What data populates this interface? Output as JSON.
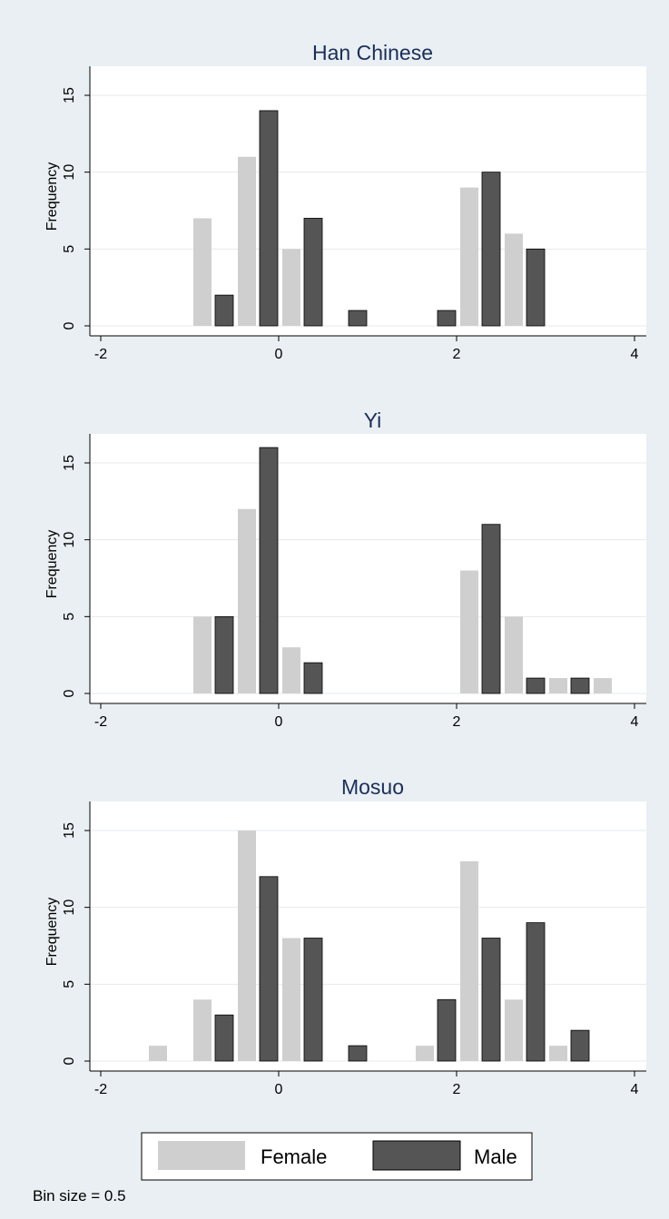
{
  "chart_data": [
    {
      "type": "bar",
      "title": "Han Chinese",
      "ylabel": "Frequency",
      "xlabel": "",
      "xlim": [
        -2,
        4
      ],
      "ylim": [
        0,
        16
      ],
      "xticks": [
        -2,
        0,
        2,
        4
      ],
      "yticks": [
        0,
        5,
        10,
        15
      ],
      "series": [
        {
          "name": "Female",
          "color": "#cfcfcf",
          "x": [
            -0.75,
            -0.25,
            0.25,
            2.25,
            2.75
          ],
          "values": [
            7,
            11,
            5,
            9,
            6
          ]
        },
        {
          "name": "Male",
          "color": "#555555",
          "x": [
            -0.75,
            -0.25,
            0.25,
            0.75,
            1.75,
            2.25,
            2.75
          ],
          "values": [
            2,
            14,
            7,
            1,
            1,
            10,
            5
          ]
        }
      ]
    },
    {
      "type": "bar",
      "title": "Yi",
      "ylabel": "Frequency",
      "xlabel": "",
      "xlim": [
        -2,
        4
      ],
      "ylim": [
        0,
        16
      ],
      "xticks": [
        -2,
        0,
        2,
        4
      ],
      "yticks": [
        0,
        5,
        10,
        15
      ],
      "series": [
        {
          "name": "Female",
          "color": "#cfcfcf",
          "x": [
            -0.75,
            -0.25,
            0.25,
            2.25,
            2.75,
            3.25,
            3.75
          ],
          "values": [
            5,
            12,
            3,
            8,
            5,
            1,
            1
          ]
        },
        {
          "name": "Male",
          "color": "#555555",
          "x": [
            -0.75,
            -0.25,
            0.25,
            2.25,
            2.75,
            3.25
          ],
          "values": [
            5,
            16,
            2,
            11,
            1,
            1
          ]
        }
      ]
    },
    {
      "type": "bar",
      "title": "Mosuo",
      "ylabel": "Frequency",
      "xlabel": "",
      "xlim": [
        -2,
        4
      ],
      "ylim": [
        0,
        16
      ],
      "xticks": [
        -2,
        0,
        2,
        4
      ],
      "yticks": [
        0,
        5,
        10,
        15
      ],
      "series": [
        {
          "name": "Female",
          "color": "#cfcfcf",
          "x": [
            -1.25,
            -0.75,
            -0.25,
            0.25,
            1.75,
            2.25,
            2.75,
            3.25
          ],
          "values": [
            1,
            4,
            15,
            8,
            1,
            13,
            4,
            1
          ]
        },
        {
          "name": "Male",
          "color": "#555555",
          "x": [
            -0.75,
            -0.25,
            0.25,
            0.75,
            1.75,
            2.25,
            2.75,
            3.25
          ],
          "values": [
            3,
            12,
            8,
            1,
            4,
            8,
            9,
            2
          ]
        }
      ]
    }
  ],
  "legend": {
    "items": [
      {
        "label": "Female",
        "color": "#cfcfcf"
      },
      {
        "label": "Male",
        "color": "#555555"
      }
    ]
  },
  "note": "Bin size = 0.5",
  "colors": {
    "background": "#e9eff2",
    "plot_bg": "#ffffff",
    "title": "#1a2e5c",
    "grid": "#e6eaec"
  }
}
